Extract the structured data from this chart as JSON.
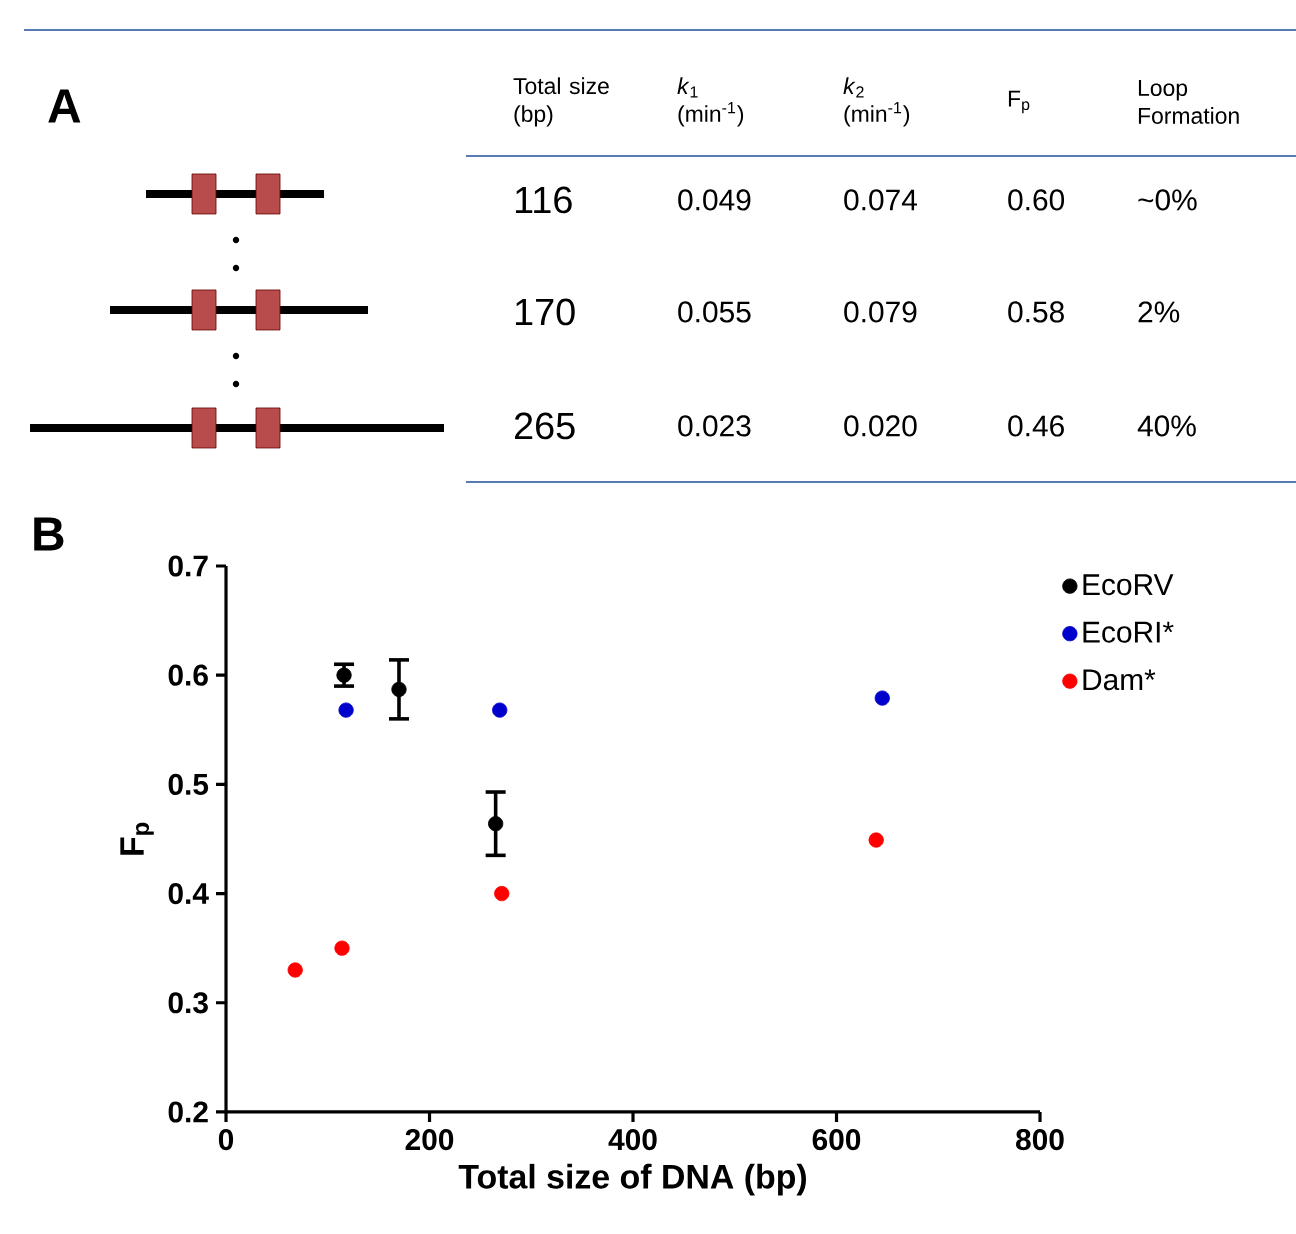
{
  "chart_data": [
    {
      "type": "other",
      "title": "A",
      "annotations": [
        "Total size (bp)",
        "*k*$_{1}$ (min$^{-1}$)",
        "*k*$_{2}$ (min$^{-1}$)",
        "F$_{p}$",
        "Loop Formation",
        "116",
        "0.049",
        "0.074",
        "0.60",
        "~0%",
        "170",
        "0.055",
        "0.079",
        "0.58",
        "2%",
        "265",
        "0.023",
        "0.020",
        "0.46",
        "40%"
      ]
    },
    {
      "type": "scatter",
      "title": "B",
      "xlabel": "Total size of DNA (bp)",
      "ylabel": "F$_{p}$",
      "xlim": [
        0,
        800
      ],
      "xticks": [
        0,
        200,
        400,
        600,
        800
      ],
      "ylim": [
        0.2,
        0.7
      ],
      "yticks": [
        0.2,
        0.3,
        0.4,
        0.5,
        0.6,
        0.7
      ],
      "legend": "right",
      "marker": "circle",
      "series": [
        {
          "name": "EcoRV",
          "color": "#000000",
          "x": [
            116,
            170,
            265
          ],
          "values": [
            0.6,
            0.587,
            0.464
          ],
          "errors": [
            0.01,
            0.027,
            0.029
          ]
        },
        {
          "name": "EcoRI*",
          "color": "#0000cc",
          "x": [
            118,
            269,
            645
          ],
          "values": [
            0.568,
            0.568,
            0.579
          ]
        },
        {
          "name": "Dam*",
          "color": "#ff0000",
          "x": [
            68,
            114,
            271,
            639
          ],
          "values": [
            0.33,
            0.35,
            0.4,
            0.449
          ]
        }
      ]
    }
  ]
}
